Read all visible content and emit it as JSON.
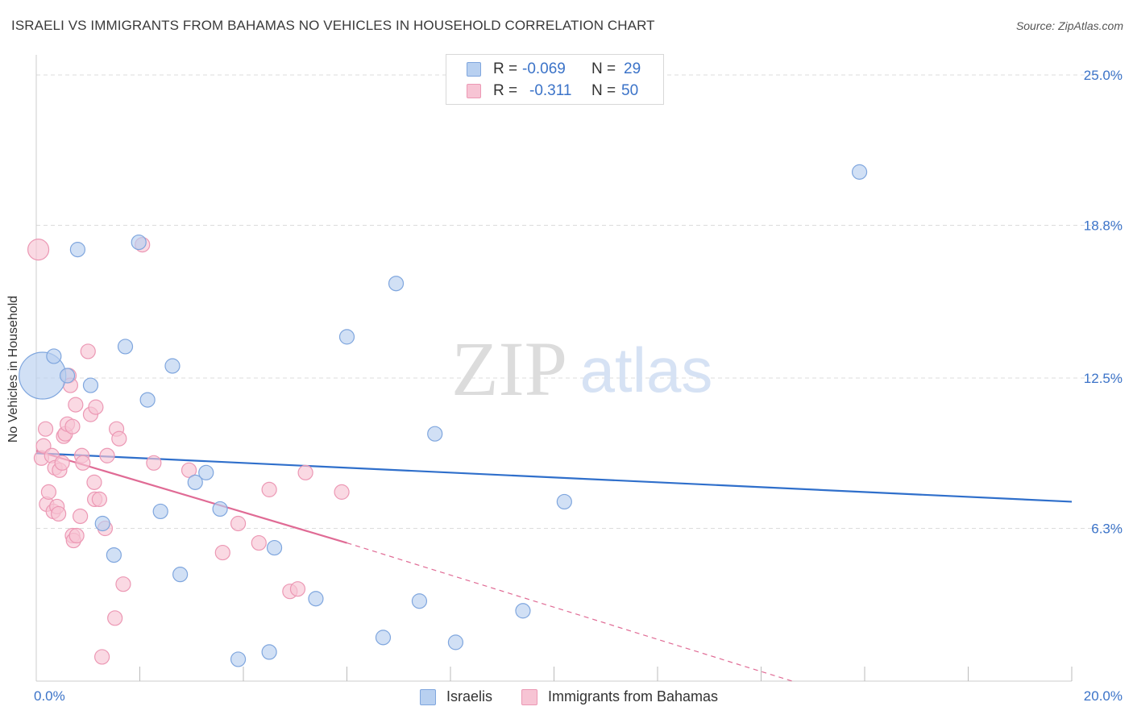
{
  "title": "ISRAELI VS IMMIGRANTS FROM BAHAMAS NO VEHICLES IN HOUSEHOLD CORRELATION CHART",
  "source": "Source: ZipAtlas.com",
  "watermark": {
    "zip": "ZIP",
    "atlas": "atlas"
  },
  "legend_top": {
    "rows": [
      {
        "r_label": "R =",
        "r_value": "-0.069",
        "n_label": "N =",
        "n_value": "29"
      },
      {
        "r_label": "R =",
        "r_value": "-0.311",
        "n_label": "N =",
        "n_value": "50"
      }
    ]
  },
  "colors": {
    "blue_fill": "#b8d0f0",
    "blue_edge": "#7fa6de",
    "blue_line": "#2f6fcb",
    "pink_fill": "#f7c4d4",
    "pink_edge": "#ec98b4",
    "pink_line": "#e06b95",
    "tick_label": "#3b73c8",
    "grid": "#dcdcdc"
  },
  "chart_data": {
    "type": "scatter",
    "title": "ISRAELI VS IMMIGRANTS FROM BAHAMAS NO VEHICLES IN HOUSEHOLD CORRELATION CHART",
    "xlabel": "",
    "ylabel": "No Vehicles in Household",
    "xlim": [
      0,
      20
    ],
    "ylim": [
      0,
      25.5
    ],
    "x_tick_labels": [
      {
        "value": 0,
        "label": "0.0%"
      },
      {
        "value": 20,
        "label": "20.0%"
      }
    ],
    "y_tick_labels": [
      {
        "value": 6.3,
        "label": "6.3%"
      },
      {
        "value": 12.5,
        "label": "12.5%"
      },
      {
        "value": 18.8,
        "label": "18.8%"
      },
      {
        "value": 25.0,
        "label": "25.0%"
      }
    ],
    "x_minor_ticks": [
      2,
      4,
      6,
      8,
      10,
      12,
      14,
      16,
      18
    ],
    "series": [
      {
        "name": "Israelis",
        "color": "#b8d0f0",
        "points": [
          [
            0.12,
            12.6
          ],
          [
            0.34,
            13.4
          ],
          [
            0.6,
            12.6
          ],
          [
            0.8,
            17.8
          ],
          [
            1.05,
            12.2
          ],
          [
            1.28,
            6.5
          ],
          [
            1.5,
            5.2
          ],
          [
            1.72,
            13.8
          ],
          [
            1.98,
            18.1
          ],
          [
            2.15,
            11.6
          ],
          [
            2.4,
            7.0
          ],
          [
            2.63,
            13.0
          ],
          [
            2.78,
            4.4
          ],
          [
            3.07,
            8.2
          ],
          [
            3.28,
            8.6
          ],
          [
            3.55,
            7.1
          ],
          [
            3.9,
            0.9
          ],
          [
            4.5,
            1.2
          ],
          [
            4.6,
            5.5
          ],
          [
            5.4,
            3.4
          ],
          [
            6.0,
            14.2
          ],
          [
            6.7,
            1.8
          ],
          [
            6.95,
            16.4
          ],
          [
            7.4,
            3.3
          ],
          [
            7.7,
            10.2
          ],
          [
            8.1,
            1.6
          ],
          [
            9.4,
            2.9
          ],
          [
            10.2,
            7.4
          ],
          [
            15.9,
            21.0
          ]
        ],
        "sizes": [
          30,
          10,
          10,
          10,
          10,
          10,
          10,
          10,
          10,
          10,
          10,
          10,
          10,
          10,
          10,
          10,
          10,
          10,
          10,
          10,
          10,
          10,
          10,
          10,
          10,
          10,
          10,
          10,
          10
        ],
        "trend": {
          "x": [
            0,
            20
          ],
          "y": [
            9.4,
            7.4
          ],
          "style": "solid"
        }
      },
      {
        "name": "Immigrants from Bahamas",
        "color": "#f7c4d4",
        "points": [
          [
            0.04,
            17.8
          ],
          [
            0.1,
            9.2
          ],
          [
            0.14,
            9.7
          ],
          [
            0.18,
            10.4
          ],
          [
            0.2,
            7.3
          ],
          [
            0.24,
            7.8
          ],
          [
            0.3,
            9.3
          ],
          [
            0.33,
            7.0
          ],
          [
            0.36,
            8.8
          ],
          [
            0.4,
            7.2
          ],
          [
            0.43,
            6.9
          ],
          [
            0.45,
            8.7
          ],
          [
            0.5,
            9.0
          ],
          [
            0.53,
            10.1
          ],
          [
            0.56,
            10.2
          ],
          [
            0.6,
            10.6
          ],
          [
            0.63,
            12.6
          ],
          [
            0.66,
            12.2
          ],
          [
            0.7,
            10.5
          ],
          [
            0.7,
            6.0
          ],
          [
            0.72,
            5.8
          ],
          [
            0.76,
            11.4
          ],
          [
            0.78,
            6.0
          ],
          [
            0.85,
            6.8
          ],
          [
            0.88,
            9.3
          ],
          [
            0.9,
            9.0
          ],
          [
            1.0,
            13.6
          ],
          [
            1.05,
            11.0
          ],
          [
            1.12,
            8.2
          ],
          [
            1.13,
            7.5
          ],
          [
            1.15,
            11.3
          ],
          [
            1.22,
            7.5
          ],
          [
            1.27,
            1.0
          ],
          [
            1.33,
            6.3
          ],
          [
            1.37,
            9.3
          ],
          [
            1.52,
            2.6
          ],
          [
            1.55,
            10.4
          ],
          [
            1.6,
            10.0
          ],
          [
            1.68,
            4.0
          ],
          [
            2.05,
            18.0
          ],
          [
            2.27,
            9.0
          ],
          [
            2.95,
            8.7
          ],
          [
            3.6,
            5.3
          ],
          [
            3.9,
            6.5
          ],
          [
            4.3,
            5.7
          ],
          [
            4.5,
            7.9
          ],
          [
            4.9,
            3.7
          ],
          [
            5.05,
            3.8
          ],
          [
            5.2,
            8.6
          ],
          [
            5.9,
            7.8
          ]
        ],
        "sizes": [
          14,
          10,
          10,
          10,
          10,
          10,
          10,
          10,
          10,
          10,
          10,
          10,
          10,
          10,
          10,
          10,
          10,
          10,
          10,
          10,
          10,
          10,
          10,
          10,
          10,
          10,
          10,
          10,
          10,
          10,
          10,
          10,
          10,
          10,
          10,
          10,
          10,
          10,
          10,
          10,
          10,
          10,
          10,
          10,
          10,
          10,
          10,
          10,
          10,
          10
        ],
        "trend": {
          "x": [
            0,
            6.0
          ],
          "y": [
            9.5,
            5.7
          ],
          "style": "solid",
          "extension": {
            "x": [
              6.0,
              14.6
            ],
            "y": [
              5.7,
              0.0
            ],
            "style": "dashed"
          }
        }
      }
    ],
    "legend": [
      {
        "label": "Israelis"
      },
      {
        "label": "Immigrants from Bahamas"
      }
    ],
    "grid": true
  }
}
